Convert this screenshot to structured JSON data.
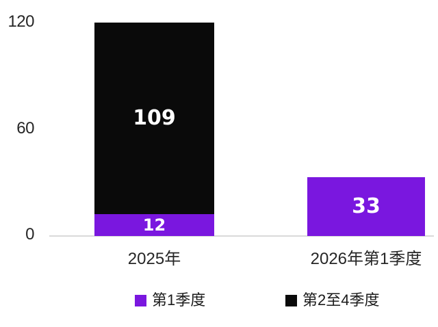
{
  "chart_data": {
    "type": "bar",
    "stacked": true,
    "title": "",
    "categories": [
      "2025年",
      "2026年第1季度"
    ],
    "series": [
      {
        "name": "第1季度",
        "color": "#7a17df",
        "values": [
          12,
          33
        ]
      },
      {
        "name": "第2至4季度",
        "color": "#0a0a0a",
        "values": [
          109,
          0
        ]
      }
    ],
    "yticks": [
      "120",
      "60",
      "0"
    ],
    "ylim": [
      0,
      120
    ],
    "grid": false,
    "legend_position": "bottom",
    "axis_line_color": "#d9d9d9",
    "tick_label_color": "#262626",
    "bar_value_label_color": "#ffffff",
    "background_color": "#ffffff"
  }
}
